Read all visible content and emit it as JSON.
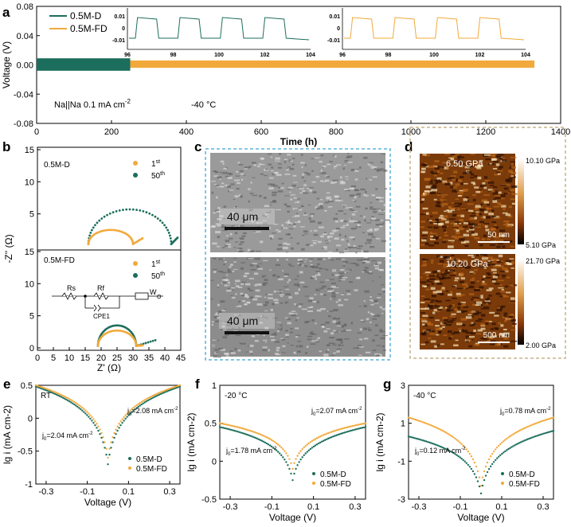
{
  "colors": {
    "d": "#1c6e5c",
    "fd": "#f2a93b",
    "sem_border": "#5ab4d8",
    "afm_border": "#c9b48a"
  },
  "chart_data": [
    {
      "id": "a",
      "panel_label": "a",
      "type": "line",
      "xlabel": "Time (h)",
      "ylabel": "Voltage (V)",
      "xlim": [
        0,
        1400
      ],
      "ylim": [
        -0.08,
        0.08
      ],
      "xticks": [
        0,
        200,
        400,
        600,
        800,
        1000,
        1200,
        1400
      ],
      "yticks": [
        -0.08,
        -0.04,
        0.0,
        0.04,
        0.08
      ],
      "ytick_labels": [
        "-0.08",
        "-0.04",
        "0.00",
        "0.04",
        "0.08"
      ],
      "series": [
        {
          "name": "0.5M-D",
          "x": [
            0,
            250
          ],
          "y_min": -0.008,
          "y_max": 0.009
        },
        {
          "name": "0.5M-FD",
          "x": [
            250,
            1330
          ],
          "y_min": -0.004,
          "y_max": 0.006
        }
      ],
      "annotations": [
        "Na||Na 0.1 mA cm",
        "-2",
        "-40 °C"
      ],
      "insets": [
        {
          "xticks": [
            96,
            98,
            100,
            102,
            104
          ],
          "yticks": [
            "0.01",
            "0",
            "-0.01"
          ],
          "series": "0.5M-D"
        },
        {
          "xticks": [
            96,
            98,
            100,
            102,
            104
          ],
          "yticks": [
            "0.01",
            "0",
            "-0.01"
          ],
          "series": "0.5M-FD"
        }
      ]
    },
    {
      "id": "b",
      "panel_label": "b",
      "type": "scatter",
      "xlabel": "Z' (Ω)",
      "ylabel": "-Z'' (Ω)",
      "xlim": [
        0,
        45
      ],
      "xticks": [
        0,
        5,
        10,
        15,
        20,
        25,
        30,
        35,
        40,
        45
      ],
      "top": {
        "label": "0.5M-D",
        "yticks": [
          15,
          10,
          5
        ],
        "series": [
          {
            "name": "1st",
            "semicircle": {
              "x0": 16,
              "x1": 30,
              "h": 2.2,
              "tail_end": [
                33,
                1.2
              ]
            }
          },
          {
            "name": "50th",
            "semicircle": {
              "x0": 16,
              "x1": 42,
              "h": 5.4,
              "tail_end": [
                44,
                1.3
              ]
            }
          }
        ]
      },
      "bottom": {
        "label": "0.5M-FD",
        "yticks": [
          15,
          10,
          5,
          0
        ],
        "series": [
          {
            "name": "1st",
            "semicircle": {
              "x0": 19,
              "x1": 31,
              "h": 2.4,
              "tail_end": [
                33,
                0.4
              ]
            }
          },
          {
            "name": "50th",
            "semicircle": {
              "x0": 19,
              "x1": 31,
              "h": 3.2,
              "tail_end": [
                37,
                1.2
              ]
            }
          }
        ]
      },
      "circuit": {
        "labels": [
          "Rs",
          "Rf",
          "W",
          "O",
          "CPE1"
        ]
      }
    },
    {
      "id": "c",
      "panel_label": "c",
      "type": "image",
      "scale_bars": [
        "40 μm",
        "40 μm"
      ]
    },
    {
      "id": "d",
      "panel_label": "d",
      "type": "image",
      "top": {
        "modulus": "6.50 GPa",
        "cbar_max": "10.10 GPa",
        "cbar_min": "5.10 GPa",
        "scale": "50 nm"
      },
      "bottom": {
        "modulus": "10.20 GPa",
        "cbar_max": "21.70 GPa",
        "cbar_min": "2.00 GPa",
        "scale": "500 nm"
      }
    },
    {
      "id": "e",
      "panel_label": "e",
      "type": "scatter",
      "condition": "RT",
      "xlabel": "Voltage (V)",
      "ylabel": "lg i (mA cm-2)",
      "xlim": [
        -0.35,
        0.35
      ],
      "ylim": [
        -1,
        0.5
      ],
      "xticks": [
        "-0.3",
        "-0.1",
        "0.1",
        "0.3"
      ],
      "yticks": [
        "0.5",
        "0",
        "-0.5",
        "-1"
      ],
      "ytick_vals": [
        0.5,
        0,
        -0.5,
        -1
      ],
      "series": [
        {
          "name": "0.5M-D",
          "j0": "2.04",
          "min": [
            0,
            -0.7
          ],
          "edge": 0.48
        },
        {
          "name": "0.5M-FD",
          "j0": "2.08",
          "min": [
            0,
            -0.6
          ],
          "edge": 0.5
        }
      ],
      "j0_labels": [
        {
          "text": "=2.08 mA cm",
          "side": "upper"
        },
        {
          "text": "=2.04 mA cm",
          "side": "lower"
        }
      ]
    },
    {
      "id": "f",
      "panel_label": "f",
      "type": "scatter",
      "condition": "-20 °C",
      "xlabel": "Voltage (V)",
      "ylabel": "lg i (mA cm-2)",
      "xlim": [
        -0.35,
        0.35
      ],
      "ylim": [
        -0.5,
        1
      ],
      "xticks": [
        "-0.3",
        "-0.1",
        "0.1",
        "0.3"
      ],
      "yticks": [
        "1",
        "0.5",
        "0",
        "-0.5"
      ],
      "ytick_vals": [
        1,
        0.5,
        0,
        -0.5
      ],
      "series": [
        {
          "name": "0.5M-D",
          "j0": "1.78",
          "min": [
            0,
            -0.25
          ],
          "edge": 0.45
        },
        {
          "name": "0.5M-FD",
          "j0": "2.07",
          "min": [
            0,
            -0.1
          ],
          "edge": 0.5
        }
      ],
      "j0_labels": [
        {
          "text": "=2.07 mA cm",
          "side": "upper"
        },
        {
          "text": "=1.78 mA cm",
          "side": "lower"
        }
      ]
    },
    {
      "id": "g",
      "panel_label": "g",
      "type": "scatter",
      "condition": "-40 °C",
      "xlabel": "Voltage (V)",
      "ylabel": "lg i (mA cm-2)",
      "xlim": [
        -0.35,
        0.35
      ],
      "ylim": [
        -3,
        3
      ],
      "xticks": [
        "-0.3",
        "-0.1",
        "0.1",
        "0.3"
      ],
      "yticks": [
        "3",
        "1",
        "-1",
        "-3"
      ],
      "ytick_vals": [
        3,
        1,
        -1,
        -3
      ],
      "series": [
        {
          "name": "0.5M-D",
          "j0": "0.12",
          "min": [
            0,
            -2.7
          ],
          "edge_l": 0.3,
          "edge_r": 0.6
        },
        {
          "name": "0.5M-FD",
          "j0": "0.78",
          "min": [
            0,
            -2.3
          ],
          "edge": 1.3
        }
      ],
      "j0_labels": [
        {
          "text": "=0.78 mA cm",
          "side": "upper"
        },
        {
          "text": "=0.12 mA cm",
          "side": "lower"
        }
      ]
    }
  ]
}
